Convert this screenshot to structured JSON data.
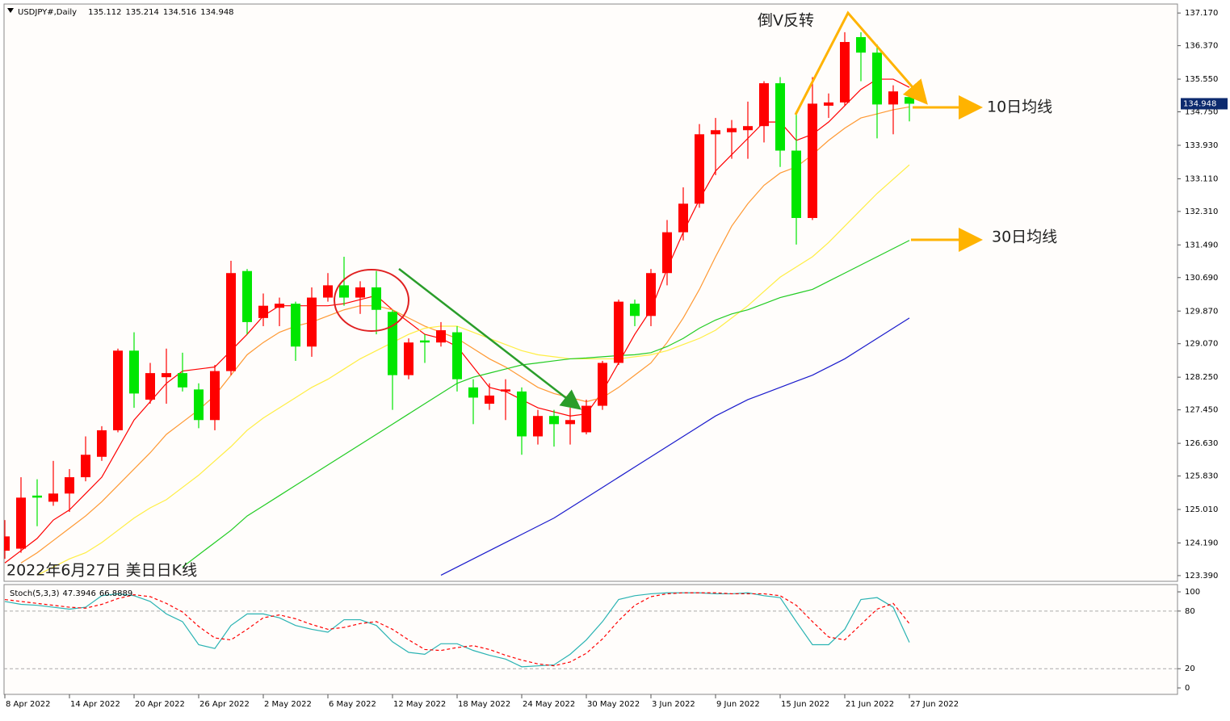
{
  "chart_data": [
    {
      "type": "candlestick",
      "title": "USDJPY#,Daily",
      "categories": [
        "8 Apr 2022",
        null,
        null,
        null,
        "14 Apr 2022",
        null,
        null,
        null,
        "20 Apr 2022",
        null,
        null,
        null,
        "26 Apr 2022",
        null,
        null,
        null,
        "2 May 2022",
        null,
        null,
        null,
        "6 May 2022",
        null,
        null,
        null,
        "12 May 2022",
        null,
        null,
        null,
        "18 May 2022",
        null,
        null,
        null,
        "24 May 2022",
        null,
        null,
        null,
        "30 May 2022",
        null,
        null,
        null,
        "3 Jun 2022",
        null,
        null,
        null,
        "9 Jun 2022",
        null,
        null,
        null,
        "15 Jun 2022",
        null,
        null,
        null,
        "21 Jun 2022",
        null,
        null,
        null,
        "27 Jun 2022"
      ],
      "open": [
        124.0,
        124.05,
        125.35,
        125.2,
        125.4,
        125.8,
        126.3,
        126.95,
        128.9,
        127.7,
        128.25,
        128.35,
        127.95,
        127.2,
        128.4,
        130.85,
        129.7,
        129.95,
        130.05,
        129.0,
        130.2,
        130.5,
        130.2,
        130.45,
        129.85,
        128.3,
        129.15,
        129.1,
        129.35,
        128.0,
        127.6,
        127.9,
        127.9,
        126.8,
        127.3,
        127.1,
        126.9,
        127.55,
        128.6,
        130.05,
        129.75,
        130.8,
        131.8,
        132.5,
        134.2,
        134.25,
        134.3,
        134.4,
        135.45,
        133.8,
        132.15,
        134.9,
        134.98,
        136.58,
        136.2,
        134.93,
        135.112
      ],
      "high": [
        124.75,
        125.8,
        125.75,
        126.2,
        126.0,
        126.8,
        127.05,
        128.95,
        129.35,
        128.6,
        128.95,
        128.85,
        128.1,
        128.55,
        131.1,
        130.9,
        130.3,
        130.2,
        130.1,
        130.45,
        130.8,
        131.2,
        130.6,
        130.85,
        129.9,
        129.2,
        129.3,
        129.6,
        129.5,
        128.2,
        128.1,
        128.2,
        128.0,
        127.45,
        127.45,
        127.5,
        127.7,
        128.65,
        130.15,
        130.15,
        130.9,
        132.1,
        132.9,
        134.45,
        134.6,
        134.55,
        135.0,
        135.5,
        135.6,
        134.7,
        135.6,
        135.2,
        136.7,
        136.7,
        136.4,
        135.4,
        135.214
      ],
      "low": [
        123.8,
        123.95,
        124.6,
        125.1,
        124.95,
        125.7,
        126.2,
        126.9,
        127.5,
        127.6,
        127.6,
        127.9,
        127.0,
        126.95,
        128.3,
        129.3,
        129.5,
        129.5,
        128.65,
        128.75,
        130.1,
        130.0,
        129.8,
        129.3,
        127.45,
        128.2,
        128.6,
        129.0,
        127.9,
        127.1,
        127.45,
        127.2,
        126.35,
        126.6,
        126.55,
        126.6,
        126.85,
        127.45,
        128.55,
        129.5,
        129.5,
        130.5,
        131.6,
        132.4,
        133.2,
        133.6,
        133.6,
        134.0,
        133.4,
        131.5,
        132.1,
        134.6,
        134.9,
        135.5,
        134.1,
        134.2,
        134.516
      ],
      "close": [
        124.35,
        125.3,
        125.3,
        125.4,
        125.8,
        126.35,
        126.95,
        128.9,
        127.85,
        128.35,
        128.35,
        128.0,
        127.2,
        128.4,
        130.8,
        129.6,
        130.0,
        130.05,
        129.0,
        130.2,
        130.5,
        130.2,
        130.45,
        129.9,
        128.3,
        129.1,
        129.1,
        129.4,
        128.2,
        127.75,
        127.8,
        127.95,
        126.8,
        127.3,
        127.1,
        127.2,
        127.55,
        128.6,
        130.1,
        129.75,
        130.8,
        131.8,
        132.5,
        134.2,
        134.3,
        134.35,
        134.4,
        135.45,
        133.8,
        132.15,
        134.95,
        134.98,
        136.46,
        136.2,
        134.93,
        135.25,
        134.948
      ],
      "up_color": "#ff0000",
      "down_color": "#00e600",
      "overlays": [
        {
          "color": "#ff0000",
          "values": [
            123.7,
            124.0,
            124.3,
            124.75,
            125.0,
            125.4,
            125.8,
            126.5,
            127.2,
            127.65,
            128.1,
            128.4,
            128.45,
            128.5,
            128.9,
            129.3,
            129.75,
            130.0,
            130.0,
            130.0,
            130.0,
            130.05,
            130.15,
            130.25,
            129.9,
            129.6,
            129.3,
            129.2,
            129.0,
            128.5,
            128.0,
            127.9,
            127.7,
            127.5,
            127.4,
            127.3,
            127.35,
            127.9,
            128.6,
            129.3,
            129.9,
            130.9,
            131.8,
            132.6,
            133.3,
            133.7,
            134.1,
            134.5,
            134.5,
            134.05,
            134.2,
            134.5,
            134.9,
            135.3,
            135.55,
            135.55,
            135.35
          ]
        },
        {
          "color": "#ff9933",
          "values": [
            null,
            123.7,
            123.95,
            124.25,
            124.55,
            124.85,
            125.2,
            125.6,
            126.0,
            126.4,
            126.85,
            127.15,
            127.45,
            127.8,
            128.3,
            128.8,
            129.1,
            129.35,
            129.5,
            129.6,
            129.75,
            129.9,
            130.0,
            130.0,
            129.9,
            129.7,
            129.5,
            129.35,
            129.2,
            128.95,
            128.7,
            128.5,
            128.25,
            128.0,
            127.85,
            127.75,
            127.65,
            127.75,
            128.0,
            128.3,
            128.6,
            129.1,
            129.7,
            130.4,
            131.2,
            131.95,
            132.5,
            132.95,
            133.25,
            133.4,
            133.7,
            134.05,
            134.35,
            134.6,
            134.7,
            134.8,
            134.87
          ]
        },
        {
          "color": "#ffee44",
          "values": [
            null,
            null,
            123.4,
            123.6,
            123.8,
            123.95,
            124.2,
            124.5,
            124.8,
            125.05,
            125.25,
            125.55,
            125.85,
            126.2,
            126.55,
            126.95,
            127.25,
            127.5,
            127.75,
            128.0,
            128.2,
            128.45,
            128.7,
            128.9,
            129.1,
            129.3,
            129.45,
            129.5,
            129.5,
            129.35,
            129.2,
            129.05,
            128.9,
            128.8,
            128.75,
            128.7,
            128.7,
            128.7,
            128.7,
            128.75,
            128.8,
            128.9,
            129.05,
            129.2,
            129.4,
            129.7,
            130.0,
            130.35,
            130.7,
            130.95,
            131.2,
            131.55,
            131.95,
            132.35,
            132.75,
            133.1,
            133.45
          ]
        },
        {
          "color": "#22cc22",
          "values": [
            null,
            null,
            null,
            null,
            null,
            null,
            null,
            null,
            null,
            null,
            null,
            123.6,
            123.9,
            124.2,
            124.5,
            124.85,
            125.1,
            125.35,
            125.6,
            125.85,
            126.1,
            126.35,
            126.6,
            126.85,
            127.1,
            127.35,
            127.6,
            127.85,
            128.1,
            128.25,
            128.35,
            128.45,
            128.55,
            128.6,
            128.65,
            128.7,
            128.72,
            128.75,
            128.78,
            128.8,
            128.85,
            129.0,
            129.2,
            129.45,
            129.65,
            129.8,
            129.9,
            130.05,
            130.2,
            130.3,
            130.4,
            130.6,
            130.8,
            131.0,
            131.2,
            131.4,
            131.6
          ]
        },
        {
          "color": "#1a1acc",
          "values": [
            null,
            null,
            null,
            null,
            null,
            null,
            null,
            null,
            null,
            null,
            null,
            null,
            null,
            null,
            null,
            null,
            null,
            null,
            null,
            null,
            null,
            null,
            null,
            null,
            null,
            null,
            null,
            123.4,
            123.6,
            123.8,
            124.0,
            124.2,
            124.4,
            124.6,
            124.8,
            125.05,
            125.3,
            125.55,
            125.8,
            126.05,
            126.3,
            126.55,
            126.8,
            127.05,
            127.3,
            127.5,
            127.7,
            127.85,
            128.0,
            128.15,
            128.3,
            128.5,
            128.7,
            128.95,
            129.2,
            129.45,
            129.7
          ]
        }
      ],
      "ylim": [
        123.25,
        137.39
      ],
      "yticks": [
        {
          "value": 137.17,
          "label": "137.170"
        },
        {
          "value": 136.37,
          "label": "136.370"
        },
        {
          "value": 135.55,
          "label": "135.550"
        },
        {
          "value": 134.75,
          "label": "134.750"
        },
        {
          "value": 133.93,
          "label": "133.930"
        },
        {
          "value": 133.11,
          "label": "133.110"
        },
        {
          "value": 132.31,
          "label": "132.310"
        },
        {
          "value": 131.49,
          "label": "131.490"
        },
        {
          "value": 130.69,
          "label": "130.690"
        },
        {
          "value": 129.87,
          "label": "129.870"
        },
        {
          "value": 129.07,
          "label": "129.070"
        },
        {
          "value": 128.25,
          "label": "128.250"
        },
        {
          "value": 127.45,
          "label": "127.450"
        },
        {
          "value": 126.63,
          "label": "126.630"
        },
        {
          "value": 125.83,
          "label": "125.830"
        },
        {
          "value": 125.01,
          "label": "125.010"
        },
        {
          "value": 124.19,
          "label": "124.190"
        },
        {
          "value": 123.39,
          "label": "123.390"
        }
      ],
      "annotations": [
        "倒V反转",
        "10日均线",
        "30日均线",
        "2022年6月27日 美日日K线"
      ]
    },
    {
      "type": "line",
      "title": "Stoch(5,3,3)",
      "series": [
        {
          "color": "#2ab3b3",
          "values": [
            90,
            87,
            86,
            84,
            82,
            84,
            96,
            98,
            96,
            90,
            77,
            69,
            45,
            41,
            65,
            77,
            77,
            73,
            65,
            61,
            58,
            71,
            71,
            65,
            48,
            37,
            35,
            46,
            46,
            39,
            34,
            30,
            22,
            23,
            24,
            35,
            50,
            69,
            92,
            96,
            98,
            99,
            99,
            99,
            98,
            98,
            99,
            96,
            94,
            69,
            45,
            45,
            61,
            92,
            94,
            84,
            47.3946
          ]
        },
        {
          "color": "#ff0000",
          "dash": true,
          "values": [
            92,
            90,
            88,
            86,
            84,
            83,
            87,
            93,
            97,
            95,
            88,
            79,
            64,
            52,
            50,
            61,
            73,
            76,
            72,
            66,
            61,
            63,
            67,
            69,
            61,
            50,
            40,
            39,
            42,
            44,
            40,
            34,
            29,
            25,
            23,
            27,
            36,
            51,
            70,
            86,
            95,
            98,
            99,
            99,
            99,
            98,
            98,
            98,
            96,
            86,
            69,
            53,
            50,
            66,
            82,
            88,
            66.8889
          ]
        }
      ],
      "ylim": [
        -6.7,
        107.6
      ],
      "yticks": [
        0,
        20,
        80,
        100
      ],
      "levels": [
        20,
        80
      ]
    }
  ]
}
